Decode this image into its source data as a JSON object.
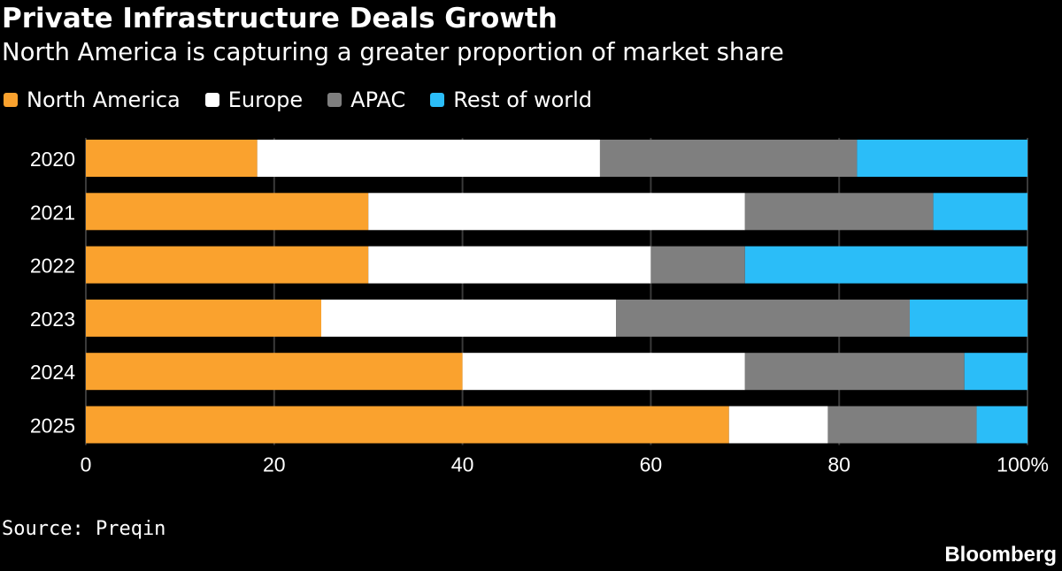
{
  "title": "Private Infrastructure Deals Growth",
  "subtitle": "North America is capturing a greater proportion of market share",
  "source": "Source: Preqin",
  "brand": "Bloomberg",
  "chart_data": {
    "type": "bar",
    "orientation": "horizontal",
    "stacked": true,
    "categories": [
      "2020",
      "2021",
      "2022",
      "2023",
      "2024",
      "2025"
    ],
    "series": [
      {
        "name": "North America",
        "color": "#FAA22E",
        "values": [
          18.2,
          30,
          30,
          25,
          40,
          68.3
        ]
      },
      {
        "name": "Europe",
        "color": "#FFFFFF",
        "values": [
          36.4,
          40,
          30,
          31.3,
          30,
          10.5
        ]
      },
      {
        "name": "APAC",
        "color": "#7F7F7F",
        "values": [
          27.3,
          20,
          10,
          31.2,
          23.3,
          15.8
        ]
      },
      {
        "name": "Rest of world",
        "color": "#2BBDF8",
        "values": [
          18.1,
          10,
          30,
          12.5,
          6.7,
          5.4
        ]
      }
    ],
    "xlim": [
      0,
      100
    ],
    "x_ticks": [
      "0",
      "20",
      "40",
      "60",
      "80",
      "100%"
    ],
    "grid": true,
    "legend_position": "top-left"
  }
}
